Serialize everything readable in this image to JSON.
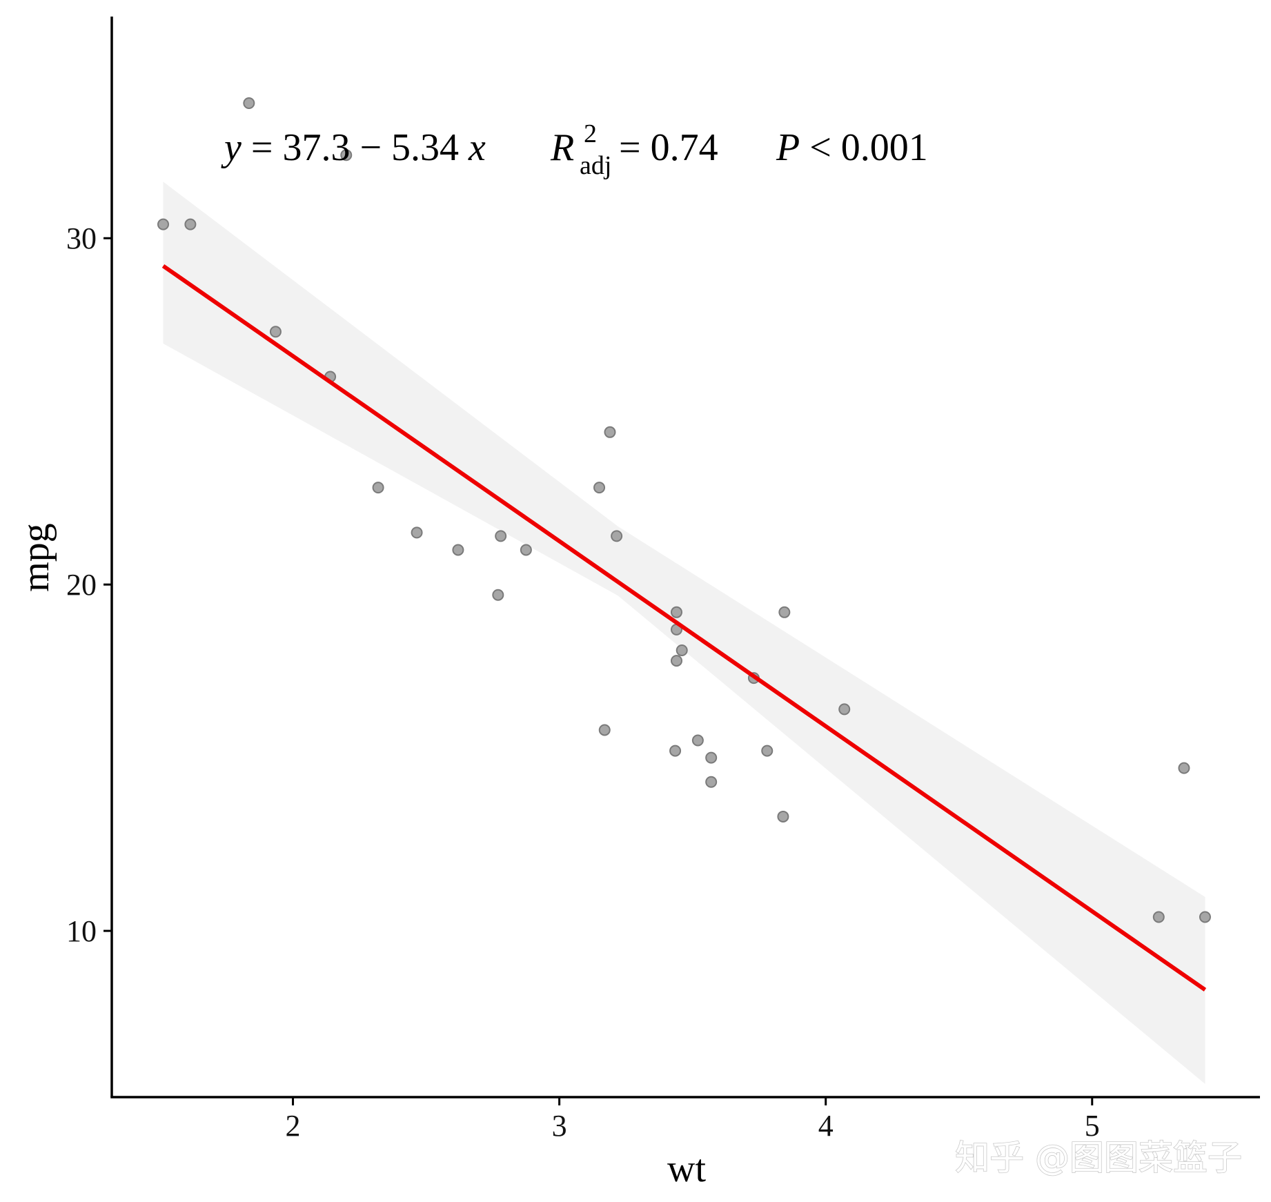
{
  "chart_data": {
    "type": "scatter",
    "xlabel": "wt",
    "ylabel": "mpg",
    "xlim": [
      1.32,
      5.63
    ],
    "ylim": [
      5.2,
      36.4
    ],
    "xticks": [
      2,
      3,
      4,
      5
    ],
    "yticks": [
      10,
      20,
      30
    ],
    "grid": false,
    "points": [
      {
        "x": 2.62,
        "y": 21.0
      },
      {
        "x": 2.875,
        "y": 21.0
      },
      {
        "x": 2.32,
        "y": 22.8
      },
      {
        "x": 3.215,
        "y": 21.4
      },
      {
        "x": 3.44,
        "y": 18.7
      },
      {
        "x": 3.46,
        "y": 18.1
      },
      {
        "x": 3.57,
        "y": 14.3
      },
      {
        "x": 3.19,
        "y": 24.4
      },
      {
        "x": 3.15,
        "y": 22.8
      },
      {
        "x": 3.44,
        "y": 19.2
      },
      {
        "x": 3.44,
        "y": 17.8
      },
      {
        "x": 4.07,
        "y": 16.4
      },
      {
        "x": 3.73,
        "y": 17.3
      },
      {
        "x": 3.78,
        "y": 15.2
      },
      {
        "x": 5.25,
        "y": 10.4
      },
      {
        "x": 5.424,
        "y": 10.4
      },
      {
        "x": 5.345,
        "y": 14.7
      },
      {
        "x": 2.2,
        "y": 32.4
      },
      {
        "x": 1.615,
        "y": 30.4
      },
      {
        "x": 1.835,
        "y": 33.9
      },
      {
        "x": 2.465,
        "y": 21.5
      },
      {
        "x": 3.52,
        "y": 15.5
      },
      {
        "x": 3.435,
        "y": 15.2
      },
      {
        "x": 3.84,
        "y": 13.3
      },
      {
        "x": 3.845,
        "y": 19.2
      },
      {
        "x": 1.935,
        "y": 27.3
      },
      {
        "x": 2.14,
        "y": 26.0
      },
      {
        "x": 1.513,
        "y": 30.4
      },
      {
        "x": 3.17,
        "y": 15.8
      },
      {
        "x": 2.77,
        "y": 19.7
      },
      {
        "x": 3.57,
        "y": 15.0
      },
      {
        "x": 2.78,
        "y": 21.4
      }
    ],
    "fit": {
      "intercept": 37.285,
      "slope": -5.344,
      "x_range": [
        1.513,
        5.424
      ],
      "ci_band": [
        {
          "x": 1.513,
          "lower": 26.96,
          "upper": 31.63
        },
        {
          "x": 3.22,
          "lower": 19.68,
          "upper": 21.68
        },
        {
          "x": 5.424,
          "lower": 5.58,
          "upper": 10.98
        }
      ]
    },
    "annotation": {
      "eq_lhs": "y",
      "eq_rhs": " = 37.3 − 5.34 ",
      "eq_var": "x",
      "r_symbol": "R",
      "r_sup": "2",
      "r_sub": "adj",
      "r_value": " = 0.74",
      "p_symbol": "P",
      "p_value": " < 0.001"
    },
    "colors": {
      "point_fill": "#a6a6a6",
      "point_stroke": "#7a7a7a",
      "fit_line": "#ee0000",
      "ci_band": "#f2f2f2",
      "axis": "#000000"
    }
  },
  "watermark": "知乎 @图图菜篮子"
}
